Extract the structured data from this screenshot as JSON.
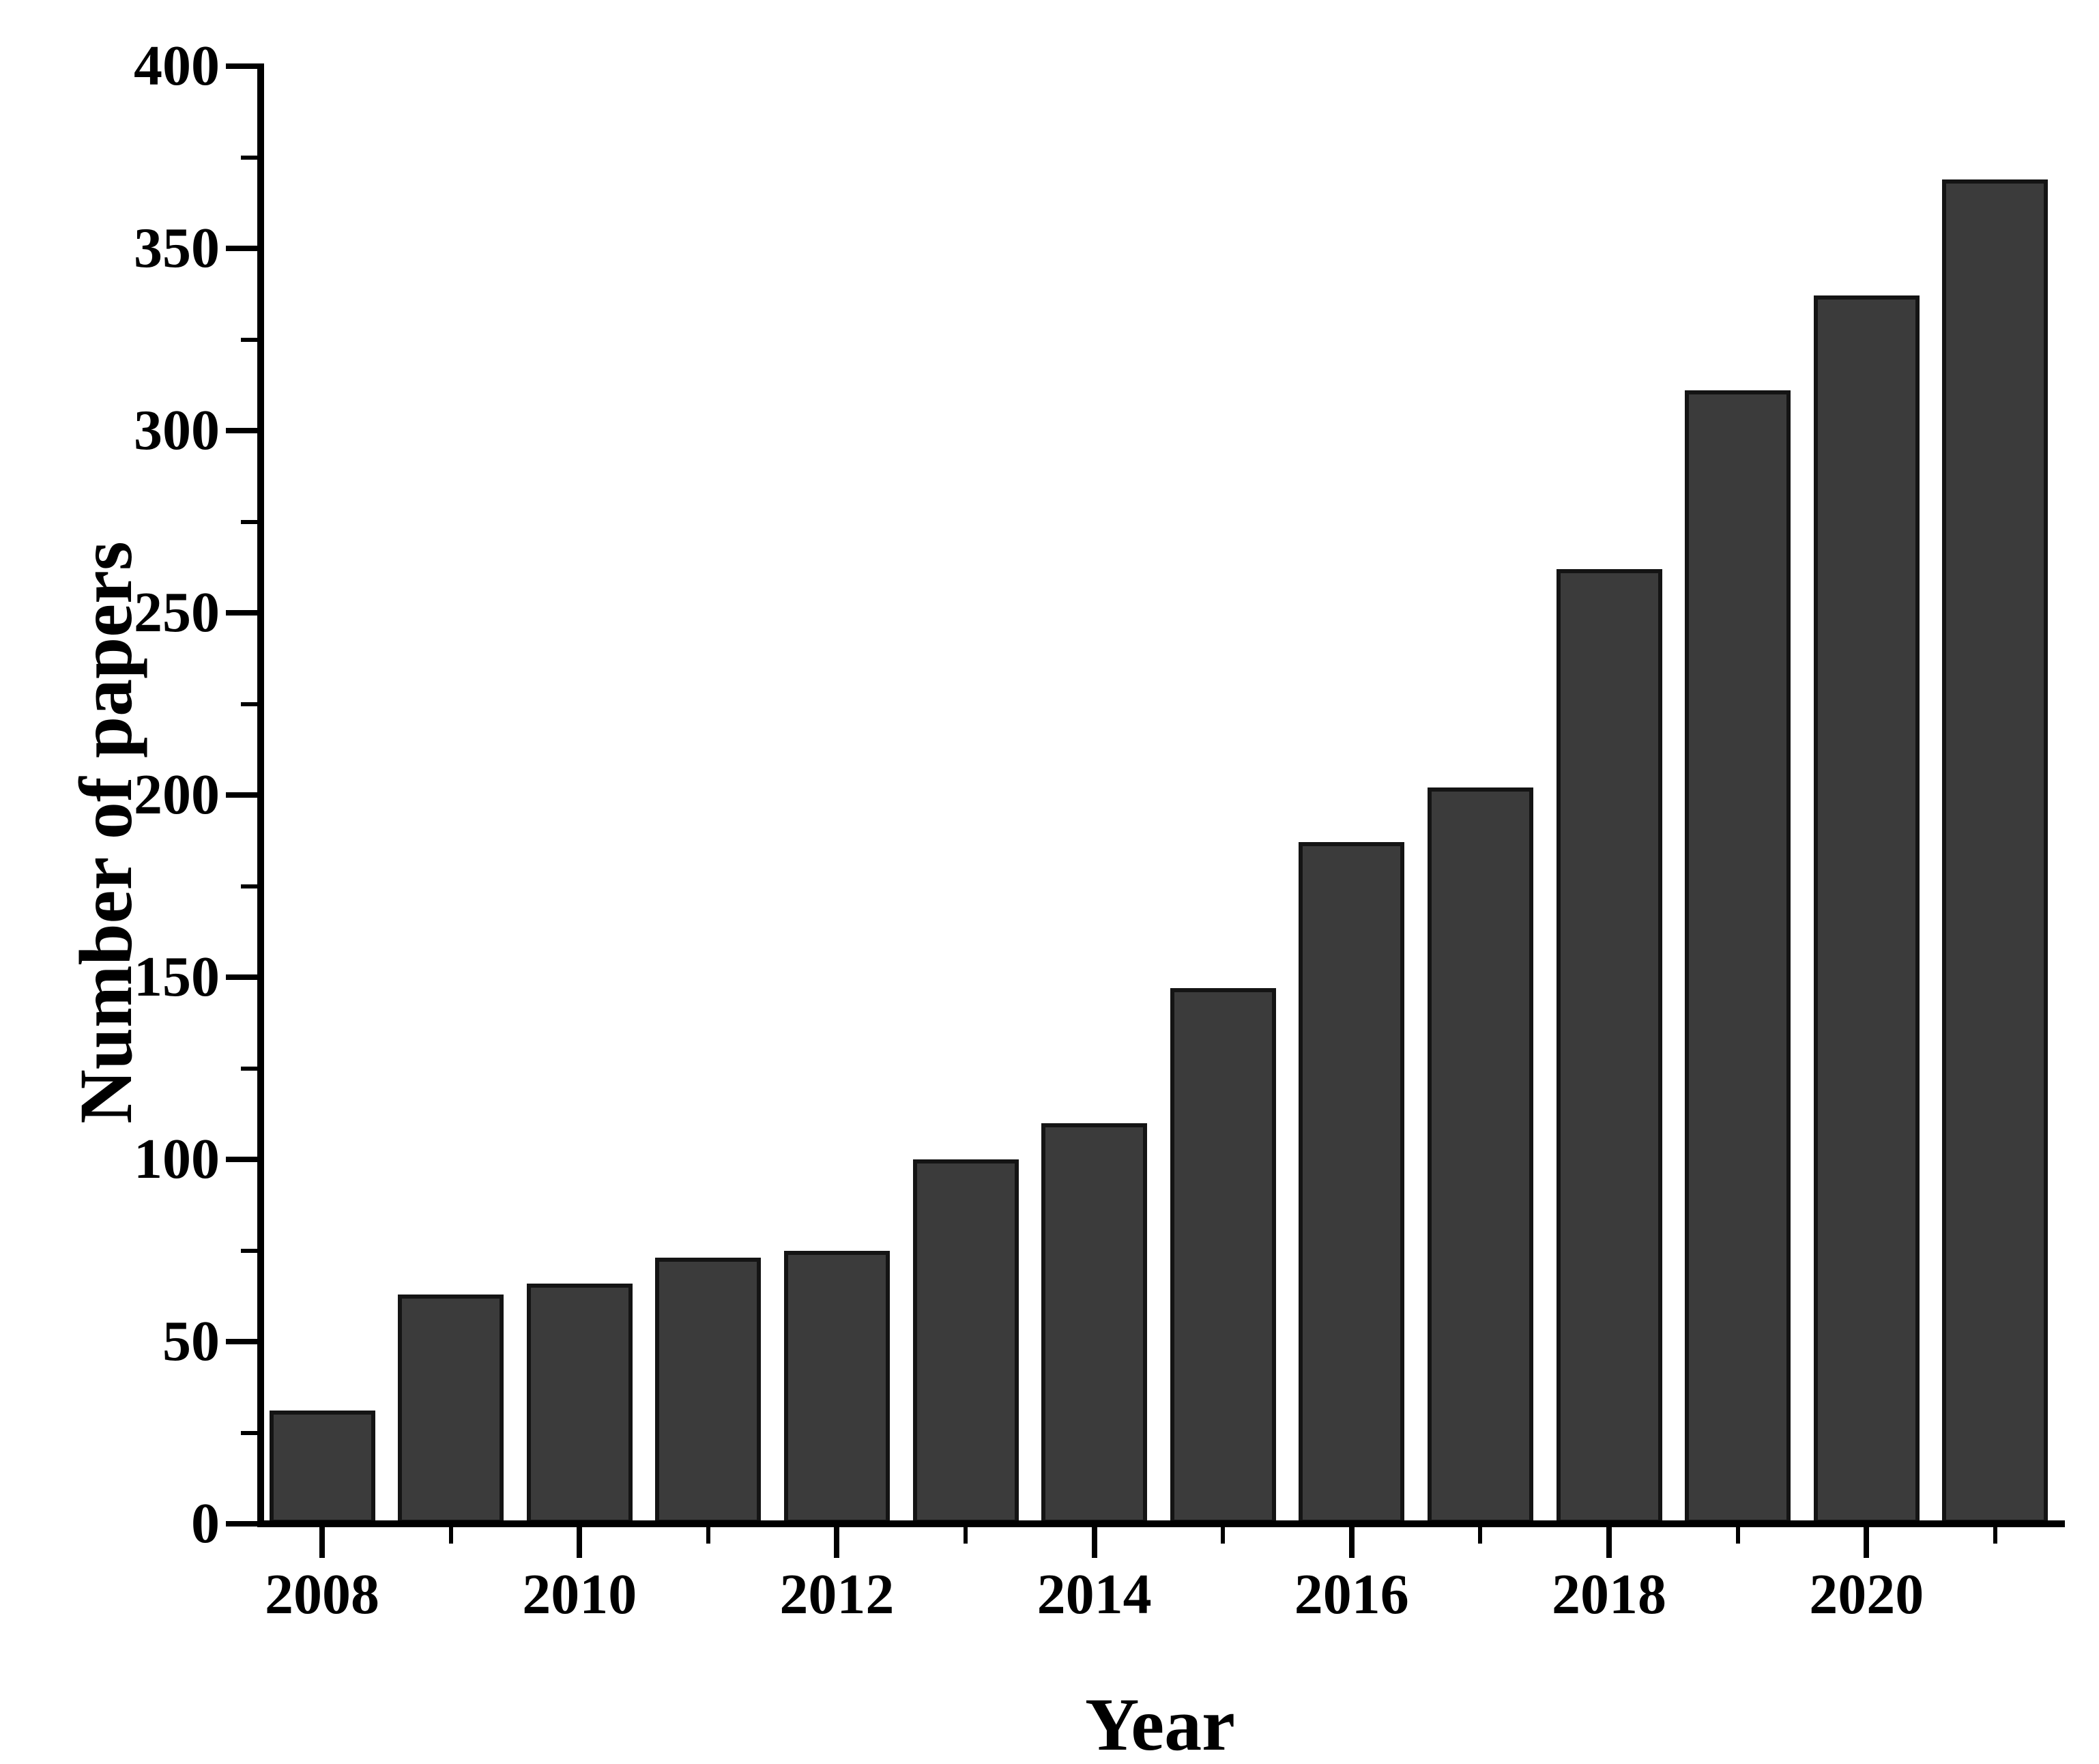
{
  "figure": {
    "background": "#ffffff",
    "text_color": "#000000"
  },
  "chart_data": {
    "type": "bar",
    "title": "",
    "xlabel": "Year",
    "ylabel": "Number of papers",
    "categories": [
      "2008",
      "2009",
      "2010",
      "2011",
      "2012",
      "2013",
      "2014",
      "2015",
      "2016",
      "2017",
      "2018",
      "2019",
      "2020",
      "2021"
    ],
    "values": [
      31,
      63,
      66,
      73,
      75,
      100,
      110,
      147,
      187,
      202,
      262,
      311,
      337,
      369
    ],
    "ylim": [
      0,
      400
    ],
    "y_major_step": 50,
    "y_minor_step": 25,
    "y_tick_labels": [
      "0",
      "50",
      "100",
      "150",
      "200",
      "250",
      "300",
      "350",
      "400"
    ],
    "x_labeled_years": [
      "2008",
      "2010",
      "2012",
      "2014",
      "2016",
      "2018",
      "2020"
    ],
    "grid": false,
    "legend": null,
    "bar_fill": "#3b3b3b",
    "bar_border": "#141414",
    "axis_color": "#000000"
  }
}
